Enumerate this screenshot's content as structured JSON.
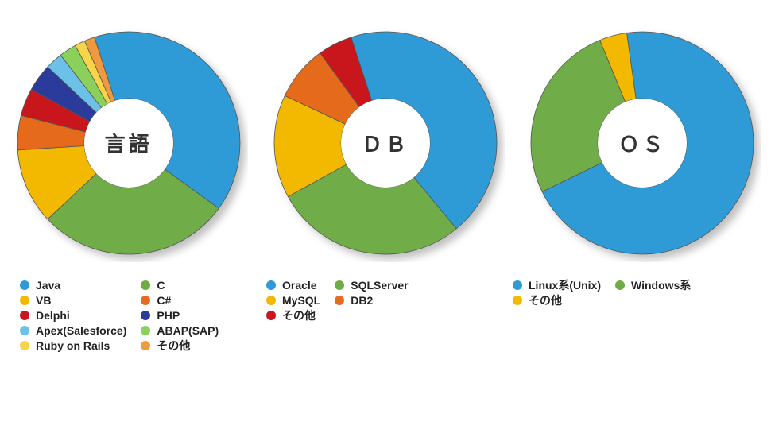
{
  "background_color": "#ffffff",
  "donut_style": {
    "outer_radius": 140,
    "inner_radius": 56,
    "shadow_color": "rgba(0,0,0,0.25)",
    "shadow_blur": 10,
    "shadow_dx": 6,
    "shadow_dy": 6,
    "separator_color": "#555555",
    "separator_width": 0.8,
    "title_fontsize": 26,
    "title_color": "#333333"
  },
  "legend_style": {
    "fontsize": 14,
    "font_weight": "bold",
    "text_color": "#222222",
    "swatch_size": 12
  },
  "charts": [
    {
      "id": "lang",
      "title": "言語",
      "type": "donut",
      "start_angle_deg": -18,
      "legend_columns": 2,
      "slices": [
        {
          "label": "Java",
          "value": 40,
          "color": "#2e9bd6"
        },
        {
          "label": "C",
          "value": 28,
          "color": "#6fac46"
        },
        {
          "label": "VB",
          "value": 11,
          "color": "#f2b900"
        },
        {
          "label": "C#",
          "value": 5,
          "color": "#e56b1f"
        },
        {
          "label": "Delphi",
          "value": 4,
          "color": "#c8171e"
        },
        {
          "label": "PHP",
          "value": 4,
          "color": "#2b3a9b"
        },
        {
          "label": "Apex(Salesforce)",
          "value": 2.5,
          "color": "#6cc1e8"
        },
        {
          "label": "ABAP(SAP)",
          "value": 2.5,
          "color": "#8bd05a"
        },
        {
          "label": "Ruby on Rails",
          "value": 1.5,
          "color": "#f6d54a"
        },
        {
          "label": "その他",
          "value": 1.5,
          "color": "#f09a3e"
        }
      ]
    },
    {
      "id": "db",
      "title": "ＤＢ",
      "type": "donut",
      "start_angle_deg": -18,
      "legend_columns": 2,
      "slices": [
        {
          "label": "Oracle",
          "value": 44,
          "color": "#2e9bd6"
        },
        {
          "label": "SQLServer",
          "value": 28,
          "color": "#6fac46"
        },
        {
          "label": "MySQL",
          "value": 15,
          "color": "#f2b900"
        },
        {
          "label": "DB2",
          "value": 8,
          "color": "#e56b1f"
        },
        {
          "label": "その他",
          "value": 5,
          "color": "#c8171e"
        }
      ]
    },
    {
      "id": "os",
      "title": "ＯＳ",
      "type": "donut",
      "start_angle_deg": -8,
      "legend_columns": 2,
      "slices": [
        {
          "label": "Linux系(Unix)",
          "value": 70,
          "color": "#2e9bd6"
        },
        {
          "label": "Windows系",
          "value": 26,
          "color": "#6fac46"
        },
        {
          "label": "その他",
          "value": 4,
          "color": "#f2b900"
        }
      ]
    }
  ]
}
